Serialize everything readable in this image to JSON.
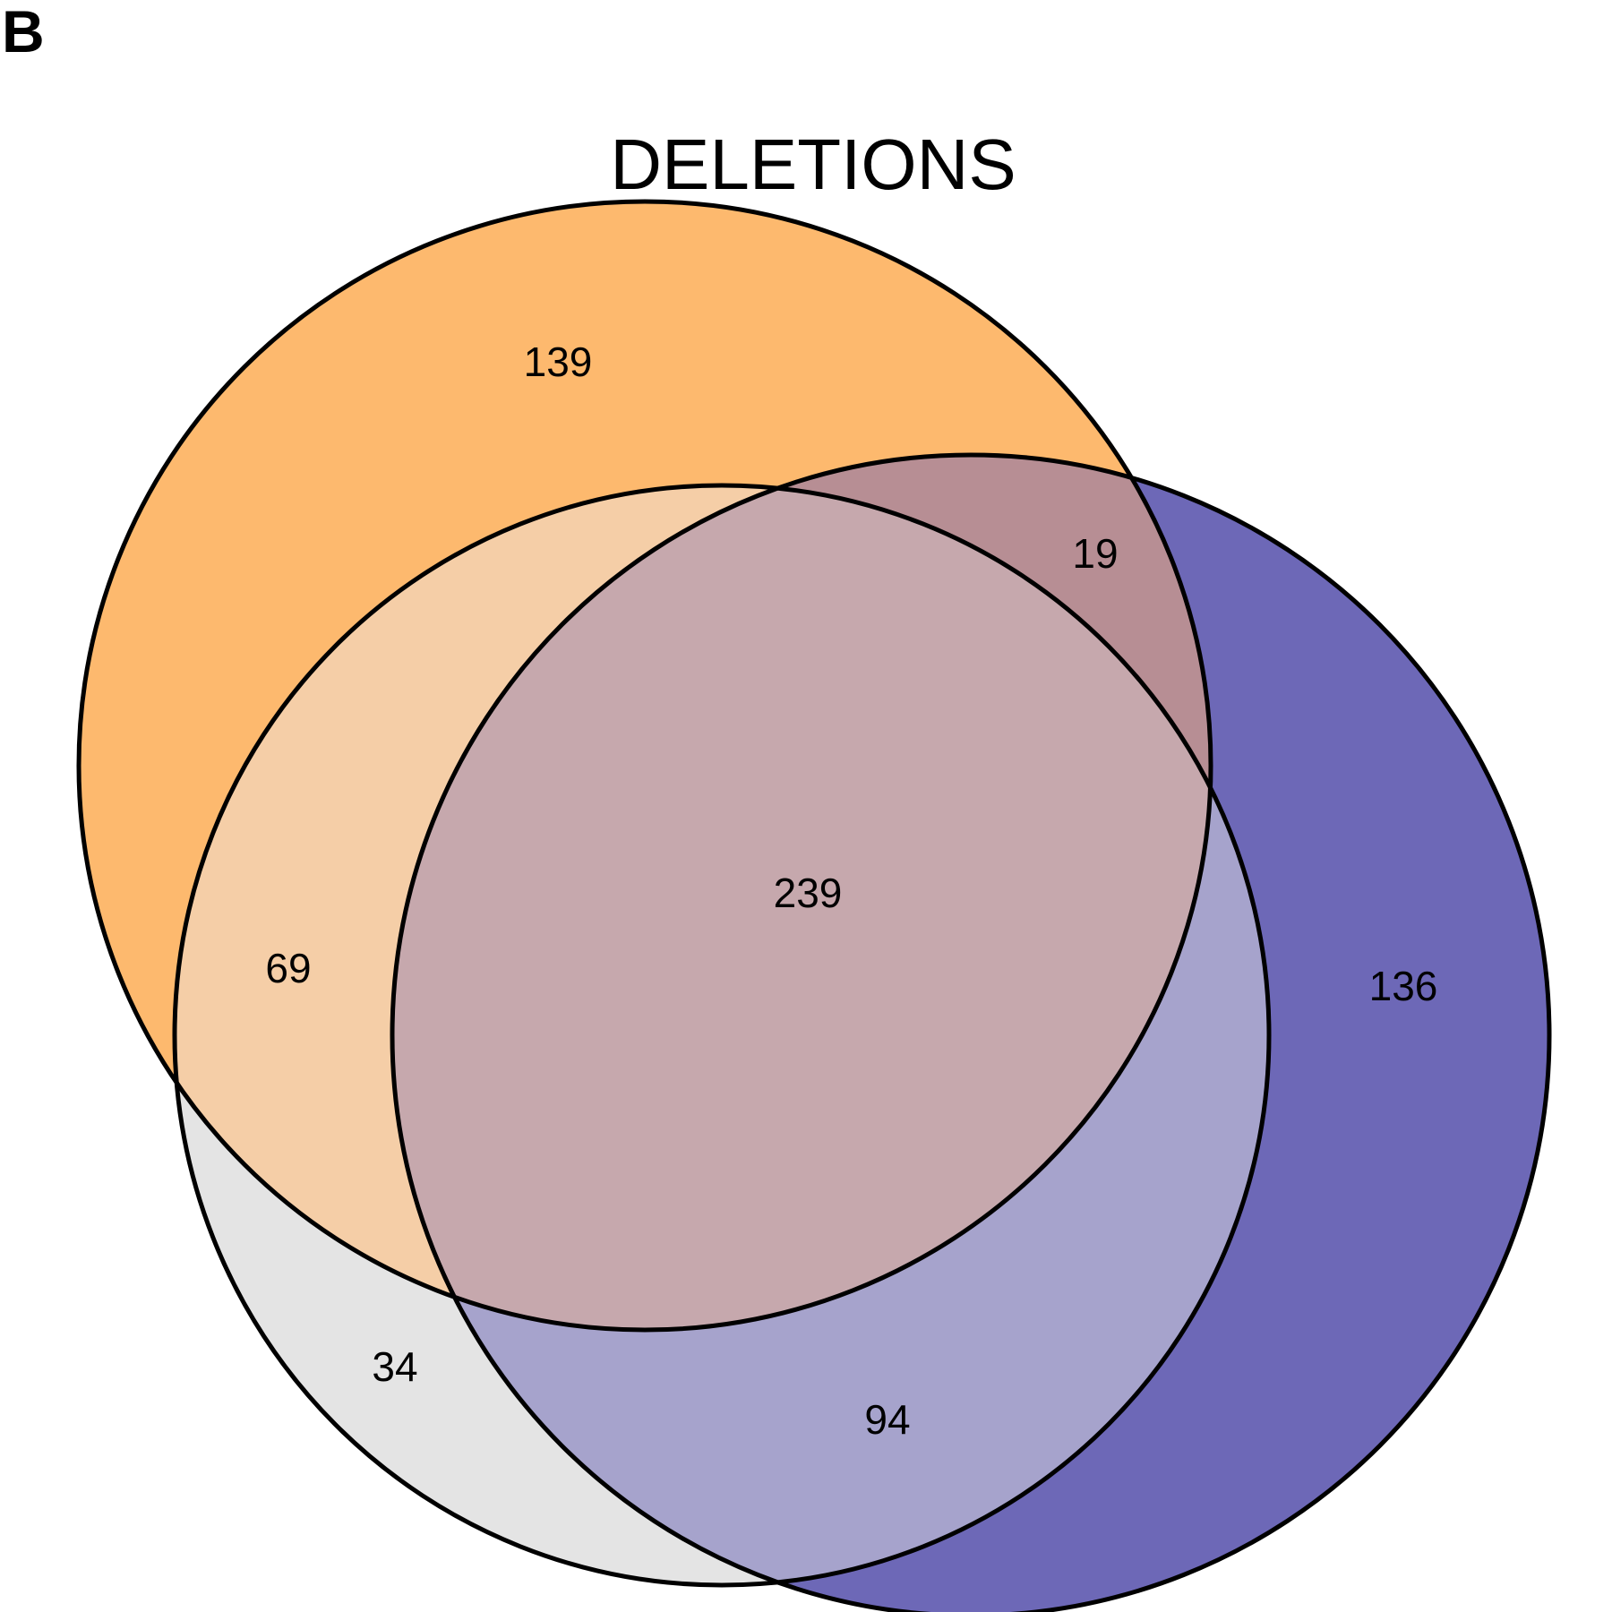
{
  "panel_label": "B",
  "title": "DELETIONS",
  "colors": {
    "set_a": "#FDB96E",
    "set_b": "#E4E4E4",
    "set_c": "#6D68B7",
    "a_b": "#F5CEA7",
    "a_c": "#B78E94",
    "b_c": "#A6A3CC",
    "a_b_c": "#C6A8AD",
    "outline": "#000000"
  },
  "regions": {
    "a_only": "139",
    "a_c": "19",
    "a_b": "69",
    "a_b_c": "239",
    "c_only": "136",
    "b_only": "34",
    "b_c": "94"
  }
}
